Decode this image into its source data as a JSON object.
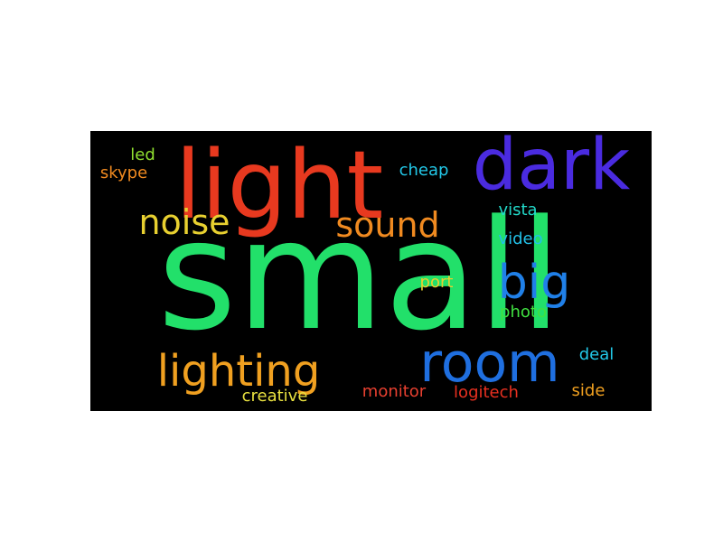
{
  "words": [
    {
      "text": "small",
      "color": "#22e06a"
    },
    {
      "text": "light",
      "color": "#e8391f"
    },
    {
      "text": "dark",
      "color": "#4a2be0"
    },
    {
      "text": "room",
      "color": "#1f6fe0"
    },
    {
      "text": "lighting",
      "color": "#f0a020"
    },
    {
      "text": "noise",
      "color": "#e8d030"
    },
    {
      "text": "sound",
      "color": "#f08a20"
    },
    {
      "text": "big",
      "color": "#2080e8"
    },
    {
      "text": "vista",
      "color": "#22d8c8"
    },
    {
      "text": "video",
      "color": "#22c0e8"
    },
    {
      "text": "port",
      "color": "#e8d030"
    },
    {
      "text": "photo",
      "color": "#40e040"
    },
    {
      "text": "deal",
      "color": "#22c8e8"
    },
    {
      "text": "side",
      "color": "#f0a020"
    },
    {
      "text": "logitech",
      "color": "#e83020"
    },
    {
      "text": "monitor",
      "color": "#e84030"
    },
    {
      "text": "creative",
      "color": "#e8e040"
    },
    {
      "text": "led",
      "color": "#90e030"
    },
    {
      "text": "skype",
      "color": "#f08a20"
    },
    {
      "text": "cheap",
      "color": "#22c8e8"
    }
  ]
}
